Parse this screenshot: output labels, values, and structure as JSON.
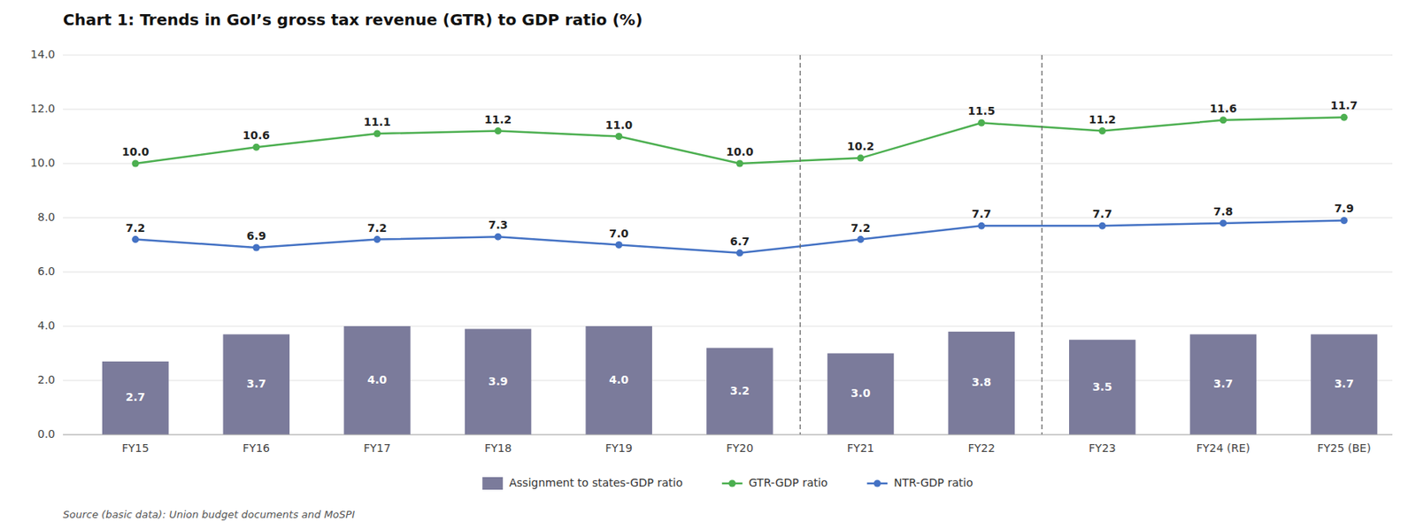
{
  "chart_data": {
    "type": "bar",
    "title": "Chart 1: Trends in GoI’s gross tax revenue (GTR) to GDP ratio (%)",
    "annotations": [
      "Source (basic data): Union budget documents and MoSPI"
    ],
    "categories": [
      "FY15",
      "FY16",
      "FY17",
      "FY18",
      "FY19",
      "FY20",
      "FY21",
      "FY22",
      "FY23",
      "FY24 (RE)",
      "FY25 (BE)"
    ],
    "series": [
      {
        "name": "Assignment to states-GDP ratio",
        "type": "bar",
        "color": "#7b7b9b",
        "values": [
          2.7,
          3.7,
          4.0,
          3.9,
          4.0,
          3.2,
          3.0,
          3.8,
          3.5,
          3.7,
          3.7
        ],
        "value_labels": [
          "2.7",
          "3.7",
          "4.0",
          "3.9",
          "4.0",
          "3.2",
          "3.0",
          "3.8",
          "3.5",
          "3.7",
          "3.7"
        ]
      },
      {
        "name": "GTR-GDP ratio",
        "type": "line",
        "color": "#4caf50",
        "marker": "circle",
        "line_style": "solid",
        "values": [
          10.0,
          10.6,
          11.1,
          11.2,
          11.0,
          10.0,
          10.2,
          11.5,
          11.2,
          11.6,
          11.7
        ],
        "value_labels": [
          "10.0",
          "10.6",
          "11.1",
          "11.2",
          "11.0",
          "10.0",
          "10.2",
          "11.5",
          "11.2",
          "11.6",
          "11.7"
        ]
      },
      {
        "name": "NTR-GDP ratio",
        "type": "line",
        "color": "#4472c4",
        "marker": "circle",
        "line_style": "solid",
        "values": [
          7.2,
          6.9,
          7.2,
          7.3,
          7.0,
          6.7,
          7.2,
          7.7,
          7.7,
          7.8,
          7.9
        ],
        "value_labels": [
          "7.2",
          "6.9",
          "7.2",
          "7.3",
          "7.0",
          "6.7",
          "7.2",
          "7.7",
          "7.7",
          "7.8",
          "7.9"
        ]
      }
    ],
    "vlines": [
      5.5,
      7.5
    ],
    "ylim": [
      0,
      14.0
    ],
    "yticks": [
      {
        "value": 0,
        "label": "0.0"
      },
      {
        "value": 2,
        "label": "2.0"
      },
      {
        "value": 4,
        "label": "4.0"
      },
      {
        "value": 6,
        "label": "6.0"
      },
      {
        "value": 8,
        "label": "8.0"
      },
      {
        "value": 10,
        "label": "10.0"
      },
      {
        "value": 12,
        "label": "12.0"
      },
      {
        "value": 14,
        "label": "14.0"
      }
    ],
    "grid": true,
    "legend": "bottom",
    "data_labels": true
  }
}
